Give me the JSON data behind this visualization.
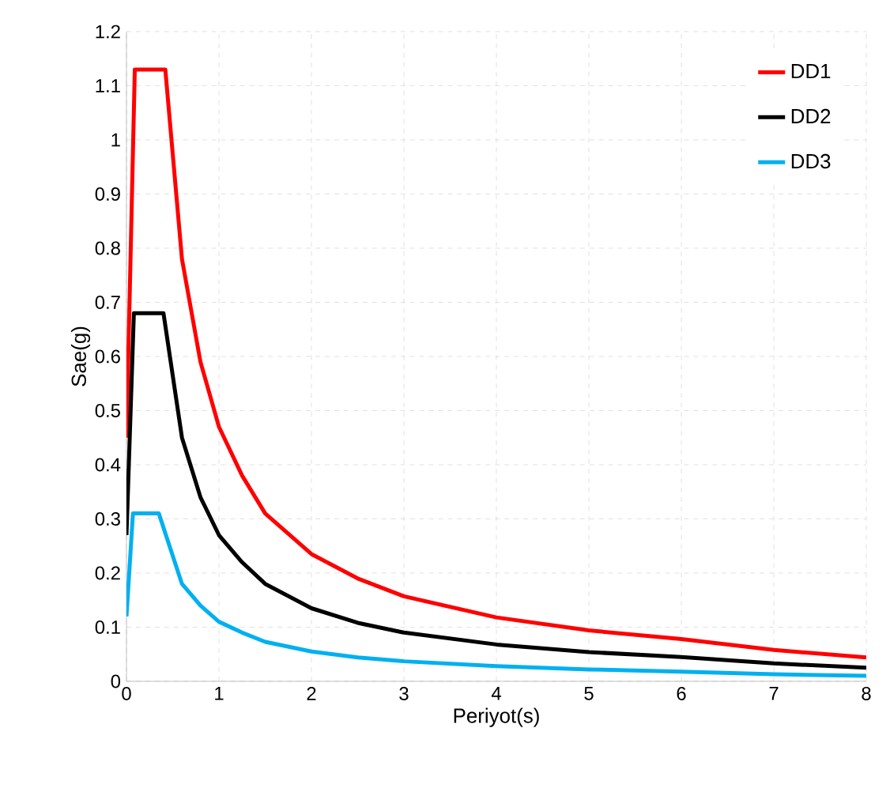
{
  "chart_data": {
    "type": "line",
    "xlabel": "Periyot(s)",
    "ylabel": "Sae(g)",
    "xlim": [
      0,
      8
    ],
    "ylim": [
      0,
      1.2
    ],
    "xticks": [
      0,
      1,
      2,
      3,
      4,
      5,
      6,
      7,
      8
    ],
    "yticks": [
      0,
      0.1,
      0.2,
      0.3,
      0.4,
      0.5,
      0.6,
      0.7,
      0.8,
      0.9,
      1,
      1.1,
      1.2
    ],
    "grid": true,
    "legend": "top right",
    "marker": "none",
    "line_style": "solid",
    "series": [
      {
        "name": "DD1",
        "color": "#ff0000",
        "x": [
          0,
          0.09,
          0.42,
          0.6,
          0.8,
          1,
          1.25,
          1.5,
          2,
          2.5,
          3,
          4,
          5,
          6,
          7,
          8
        ],
        "values": [
          0.45,
          1.13,
          1.13,
          0.78,
          0.59,
          0.47,
          0.38,
          0.31,
          0.235,
          0.19,
          0.157,
          0.118,
          0.094,
          0.078,
          0.058,
          0.044
        ]
      },
      {
        "name": "DD2",
        "color": "#000000",
        "x": [
          0,
          0.08,
          0.4,
          0.6,
          0.8,
          1,
          1.25,
          1.5,
          2,
          2.5,
          3,
          4,
          5,
          6,
          7,
          8
        ],
        "values": [
          0.27,
          0.68,
          0.68,
          0.45,
          0.34,
          0.27,
          0.22,
          0.18,
          0.135,
          0.108,
          0.09,
          0.068,
          0.054,
          0.045,
          0.033,
          0.025
        ]
      },
      {
        "name": "DD3",
        "color": "#00b0f0",
        "x": [
          0,
          0.07,
          0.35,
          0.6,
          0.8,
          1,
          1.25,
          1.5,
          2,
          2.5,
          3,
          4,
          5,
          6,
          7,
          8
        ],
        "values": [
          0.12,
          0.31,
          0.31,
          0.18,
          0.14,
          0.11,
          0.09,
          0.073,
          0.055,
          0.044,
          0.037,
          0.028,
          0.022,
          0.018,
          0.013,
          0.01
        ]
      }
    ]
  }
}
